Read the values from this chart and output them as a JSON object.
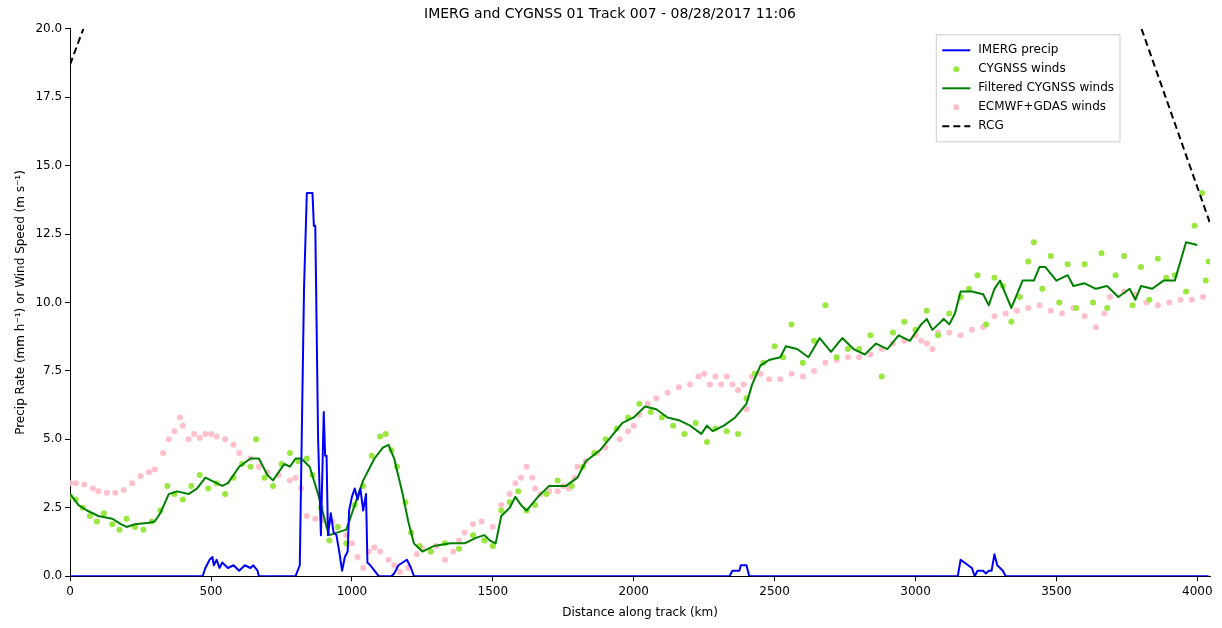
{
  "chart_data": {
    "type": "line",
    "title": "IMERG and CYGNSS 01 Track 007 - 08/28/2017 11:06",
    "xlabel": "Distance along track (km)",
    "ylabel": "Precip Rate (mm h⁻¹) or Wind Speed (m s⁻¹)",
    "xlim": [
      0,
      4045
    ],
    "ylim": [
      0,
      20
    ],
    "xticks": [
      0,
      500,
      1000,
      1500,
      2000,
      2500,
      3000,
      3500,
      4000
    ],
    "yticks": [
      {
        "value": 0,
        "label": "0.0"
      },
      {
        "value": 2.5,
        "label": "2.5"
      },
      {
        "value": 5,
        "label": "5.0"
      },
      {
        "value": 7.5,
        "label": "7.5"
      },
      {
        "value": 10,
        "label": "10.0"
      },
      {
        "value": 12.5,
        "label": "12.5"
      },
      {
        "value": 15,
        "label": "15.0"
      },
      {
        "value": 17.5,
        "label": "17.5"
      },
      {
        "value": 20,
        "label": "20.0"
      }
    ],
    "grid": false,
    "legend": "top right",
    "series": [
      {
        "name": "IMERG precip",
        "marker": "none",
        "line_style": "solid",
        "color": "#0000ff",
        "x": [
          0,
          470,
          480,
          495,
          505,
          510,
          520,
          530,
          540,
          560,
          580,
          600,
          620,
          640,
          650,
          665,
          670,
          800,
          815,
          830,
          840,
          860,
          865,
          870,
          880,
          890,
          900,
          905,
          910,
          915,
          925,
          935,
          945,
          955,
          965,
          975,
          985,
          990,
          1000,
          1010,
          1020,
          1030,
          1040,
          1050,
          1055,
          1065,
          1080,
          1095,
          1140,
          1150,
          1165,
          1180,
          1195,
          1210,
          1220,
          2340,
          2350,
          2375,
          2380,
          2400,
          2410,
          3150,
          3160,
          3200,
          3210,
          3220,
          3240,
          3250,
          3260,
          3270,
          3280,
          3290,
          3310,
          3320,
          4040
        ],
        "values": [
          0,
          0,
          0.3,
          0.6,
          0.7,
          0.4,
          0.6,
          0.3,
          0.5,
          0.3,
          0.4,
          0.2,
          0.4,
          0.3,
          0.4,
          0.2,
          0,
          0,
          0.4,
          10.5,
          14,
          14,
          12.8,
          12.8,
          5,
          1.5,
          6,
          4.4,
          4.4,
          1.5,
          2.3,
          1.6,
          1.5,
          0.9,
          0.2,
          0.7,
          0.9,
          2.4,
          2.9,
          3.2,
          2.8,
          3.2,
          2.4,
          3,
          0.5,
          0.4,
          0.2,
          0,
          0,
          0.1,
          0.4,
          0.5,
          0.6,
          0.3,
          0,
          0,
          0.2,
          0.2,
          0.4,
          0.4,
          0,
          0,
          0.6,
          0.3,
          0,
          0.2,
          0.2,
          0.1,
          0.2,
          0.2,
          0.8,
          0.4,
          0.2,
          0,
          0
        ]
      },
      {
        "name": "CYGNSS winds",
        "type": "scatter",
        "marker": "circle",
        "color": "#9ae83f",
        "x": [
          0,
          20,
          45,
          70,
          95,
          120,
          150,
          175,
          200,
          230,
          260,
          290,
          320,
          345,
          370,
          400,
          430,
          460,
          490,
          520,
          550,
          580,
          610,
          640,
          660,
          690,
          720,
          750,
          780,
          810,
          840,
          860,
          890,
          920,
          950,
          980,
          1010,
          1040,
          1070,
          1100,
          1120,
          1140,
          1160,
          1190,
          1210,
          1240,
          1280,
          1330,
          1380,
          1430,
          1470,
          1500,
          1530,
          1560,
          1590,
          1620,
          1650,
          1690,
          1730,
          1780,
          1820,
          1860,
          1900,
          1940,
          1980,
          2020,
          2060,
          2100,
          2140,
          2180,
          2220,
          2260,
          2290,
          2330,
          2370,
          2400,
          2430,
          2460,
          2500,
          2530,
          2560,
          2600,
          2640,
          2680,
          2720,
          2760,
          2800,
          2840,
          2880,
          2920,
          2960,
          3000,
          3040,
          3080,
          3120,
          3160,
          3190,
          3220,
          3250,
          3280,
          3310,
          3340,
          3370,
          3400,
          3420,
          3450,
          3480,
          3510,
          3540,
          3570,
          3600,
          3630,
          3660,
          3680,
          3710,
          3740,
          3770,
          3800,
          3830,
          3860,
          3890,
          3920,
          3960,
          3990,
          4017,
          4030,
          4040
        ],
        "values": [
          2.9,
          2.8,
          2.5,
          2.2,
          2.0,
          2.3,
          1.9,
          1.7,
          2.1,
          1.8,
          1.7,
          2.0,
          2.4,
          3.3,
          3.0,
          2.8,
          3.3,
          3.7,
          3.2,
          3.4,
          3.0,
          3.6,
          4.1,
          4.0,
          5.0,
          3.6,
          3.3,
          4.1,
          4.5,
          4.2,
          4.3,
          3.7,
          2.5,
          1.3,
          1.8,
          1.2,
          2.6,
          3.3,
          4.4,
          5.1,
          5.2,
          4.6,
          4.0,
          2.7,
          1.6,
          1.1,
          0.9,
          1.2,
          1.0,
          1.5,
          1.3,
          1.1,
          2.4,
          2.7,
          3.1,
          2.4,
          2.6,
          3.0,
          3.5,
          3.3,
          4.0,
          4.5,
          5.0,
          5.4,
          5.8,
          6.3,
          6.0,
          5.8,
          5.5,
          5.2,
          5.6,
          4.9,
          5.4,
          5.3,
          5.2,
          6.5,
          7.4,
          7.8,
          8.4,
          8.0,
          9.2,
          7.8,
          8.6,
          9.9,
          8.0,
          8.3,
          8.3,
          8.8,
          7.3,
          8.9,
          9.3,
          9.0,
          9.7,
          8.8,
          9.6,
          10.2,
          10.5,
          11.0,
          9.2,
          10.9,
          10.6,
          9.3,
          10.2,
          11.5,
          12.2,
          10.5,
          11.7,
          10.0,
          11.4,
          9.8,
          11.4,
          10.0,
          11.8,
          9.8,
          11.0,
          11.7,
          9.9,
          11.3,
          10.1,
          11.6,
          10.9,
          11.0,
          10.4,
          12.8,
          14.0,
          10.8,
          11.5
        ]
      },
      {
        "name": "Filtered CYGNSS winds",
        "marker": "none",
        "line_style": "solid",
        "color": "#008000",
        "x": [
          0,
          30,
          60,
          100,
          150,
          180,
          200,
          230,
          280,
          300,
          320,
          350,
          380,
          420,
          450,
          480,
          500,
          540,
          560,
          600,
          640,
          670,
          700,
          720,
          760,
          780,
          800,
          820,
          850,
          880,
          910,
          920,
          950,
          980,
          1000,
          1040,
          1080,
          1110,
          1130,
          1150,
          1180,
          1200,
          1220,
          1250,
          1290,
          1350,
          1400,
          1440,
          1470,
          1490,
          1510,
          1530,
          1560,
          1580,
          1600,
          1620,
          1660,
          1700,
          1760,
          1800,
          1830,
          1880,
          1920,
          1960,
          2000,
          2040,
          2080,
          2120,
          2160,
          2200,
          2240,
          2260,
          2280,
          2320,
          2360,
          2400,
          2420,
          2450,
          2480,
          2520,
          2540,
          2580,
          2620,
          2660,
          2700,
          2740,
          2780,
          2820,
          2860,
          2900,
          2940,
          2980,
          3020,
          3040,
          3060,
          3100,
          3120,
          3140,
          3160,
          3200,
          3240,
          3260,
          3280,
          3300,
          3320,
          3340,
          3380,
          3420,
          3440,
          3460,
          3500,
          3540,
          3560,
          3600,
          3640,
          3680,
          3700,
          3720,
          3760,
          3780,
          3800,
          3840,
          3880,
          3920,
          3960,
          4000
        ],
        "values": [
          3.0,
          2.6,
          2.4,
          2.2,
          2.1,
          1.9,
          1.8,
          1.9,
          1.95,
          2.0,
          2.3,
          3.0,
          3.1,
          3.0,
          3.2,
          3.6,
          3.5,
          3.3,
          3.4,
          4.0,
          4.3,
          4.3,
          3.7,
          3.5,
          4.1,
          4.0,
          4.3,
          4.3,
          4.0,
          3.0,
          1.8,
          1.5,
          1.6,
          1.7,
          2.3,
          3.5,
          4.3,
          4.7,
          4.8,
          4.3,
          3.0,
          2.0,
          1.2,
          0.9,
          1.1,
          1.2,
          1.2,
          1.4,
          1.5,
          1.3,
          1.2,
          2.2,
          2.5,
          2.9,
          2.6,
          2.4,
          2.9,
          3.3,
          3.3,
          3.6,
          4.2,
          4.6,
          5.1,
          5.6,
          5.8,
          6.2,
          6.1,
          5.8,
          5.7,
          5.5,
          5.2,
          5.5,
          5.3,
          5.5,
          5.8,
          6.3,
          7.0,
          7.7,
          7.9,
          8.0,
          8.4,
          8.3,
          8.0,
          8.7,
          8.2,
          8.7,
          8.3,
          8.1,
          8.5,
          8.3,
          8.8,
          8.6,
          9.2,
          9.4,
          9.0,
          9.4,
          9.2,
          9.6,
          10.4,
          10.4,
          10.3,
          9.9,
          10.5,
          10.8,
          10.3,
          9.8,
          10.8,
          10.8,
          11.3,
          11.3,
          10.8,
          11.0,
          10.6,
          10.7,
          10.5,
          10.6,
          10.4,
          10.2,
          10.5,
          10.1,
          10.6,
          10.5,
          10.8,
          10.8,
          12.2,
          12.1
        ]
      },
      {
        "name": "ECMWF+GDAS winds",
        "type": "scatter",
        "marker": "circle",
        "color": "#ffc0cb",
        "x": [
          0,
          20,
          50,
          80,
          100,
          130,
          160,
          190,
          220,
          250,
          280,
          300,
          330,
          350,
          370,
          390,
          400,
          420,
          440,
          460,
          480,
          500,
          520,
          550,
          580,
          600,
          640,
          670,
          700,
          740,
          780,
          800,
          820,
          840,
          870,
          900,
          930,
          950,
          980,
          1000,
          1020,
          1040,
          1060,
          1080,
          1100,
          1130,
          1150,
          1170,
          1200,
          1230,
          1250,
          1280,
          1300,
          1330,
          1360,
          1380,
          1400,
          1430,
          1460,
          1500,
          1530,
          1560,
          1580,
          1600,
          1620,
          1640,
          1650,
          1670,
          1700,
          1730,
          1750,
          1770,
          1790,
          1800,
          1830,
          1870,
          1900,
          1950,
          1980,
          2000,
          2020,
          2050,
          2080,
          2120,
          2160,
          2200,
          2230,
          2250,
          2270,
          2290,
          2310,
          2330,
          2350,
          2370,
          2390,
          2400,
          2420,
          2450,
          2480,
          2520,
          2560,
          2600,
          2640,
          2680,
          2720,
          2760,
          2800,
          2840,
          2880,
          2920,
          2960,
          3000,
          3020,
          3040,
          3060,
          3080,
          3120,
          3160,
          3200,
          3240,
          3280,
          3320,
          3360,
          3400,
          3440,
          3480,
          3520,
          3560,
          3600,
          3640,
          3670,
          3690,
          3740,
          3780,
          3820,
          3860,
          3900,
          3940,
          3980,
          4020
        ],
        "values": [
          3.4,
          3.4,
          3.35,
          3.2,
          3.1,
          3.05,
          3.05,
          3.15,
          3.4,
          3.65,
          3.8,
          3.9,
          4.5,
          5.0,
          5.3,
          5.8,
          5.5,
          5.0,
          5.2,
          5.05,
          5.2,
          5.2,
          5.1,
          5.0,
          4.8,
          4.5,
          4.3,
          4.0,
          3.8,
          3.7,
          3.5,
          3.6,
          3.2,
          2.2,
          2.1,
          2.05,
          2.0,
          1.8,
          1.5,
          1.2,
          0.7,
          0.3,
          0.9,
          1.05,
          0.9,
          0.6,
          0.4,
          0.15,
          0.3,
          0.8,
          1.0,
          0.9,
          1.1,
          0.6,
          0.9,
          1.3,
          1.6,
          1.9,
          2.0,
          1.8,
          2.6,
          3.0,
          3.4,
          3.6,
          4.0,
          3.6,
          3.2,
          3.0,
          3.1,
          3.1,
          3.3,
          3.2,
          3.6,
          4.0,
          4.2,
          4.5,
          4.7,
          5.0,
          5.3,
          5.5,
          5.9,
          6.3,
          6.5,
          6.7,
          6.9,
          7.0,
          7.3,
          7.4,
          7.0,
          7.3,
          7.0,
          7.3,
          7.0,
          6.8,
          7.0,
          6.1,
          7.3,
          7.4,
          7.2,
          7.2,
          7.4,
          7.3,
          7.5,
          7.8,
          7.9,
          8.0,
          8.0,
          8.1,
          8.3,
          8.5,
          8.6,
          8.8,
          8.6,
          8.5,
          8.3,
          8.9,
          8.9,
          8.8,
          9.0,
          9.1,
          9.5,
          9.6,
          9.7,
          9.8,
          9.9,
          9.7,
          9.6,
          9.8,
          9.5,
          9.1,
          9.6,
          10.2,
          10.4,
          10.3,
          10.0,
          9.9,
          10.0,
          10.1,
          10.1,
          10.2
        ]
      },
      {
        "name": "RCG",
        "marker": "none",
        "line_style": "dashed",
        "color": "#000000",
        "x": [
          0,
          47,
          1000,
          3802,
          4045
        ],
        "values": [
          18.7,
          20,
          null,
          20,
          12.9
        ]
      }
    ]
  }
}
